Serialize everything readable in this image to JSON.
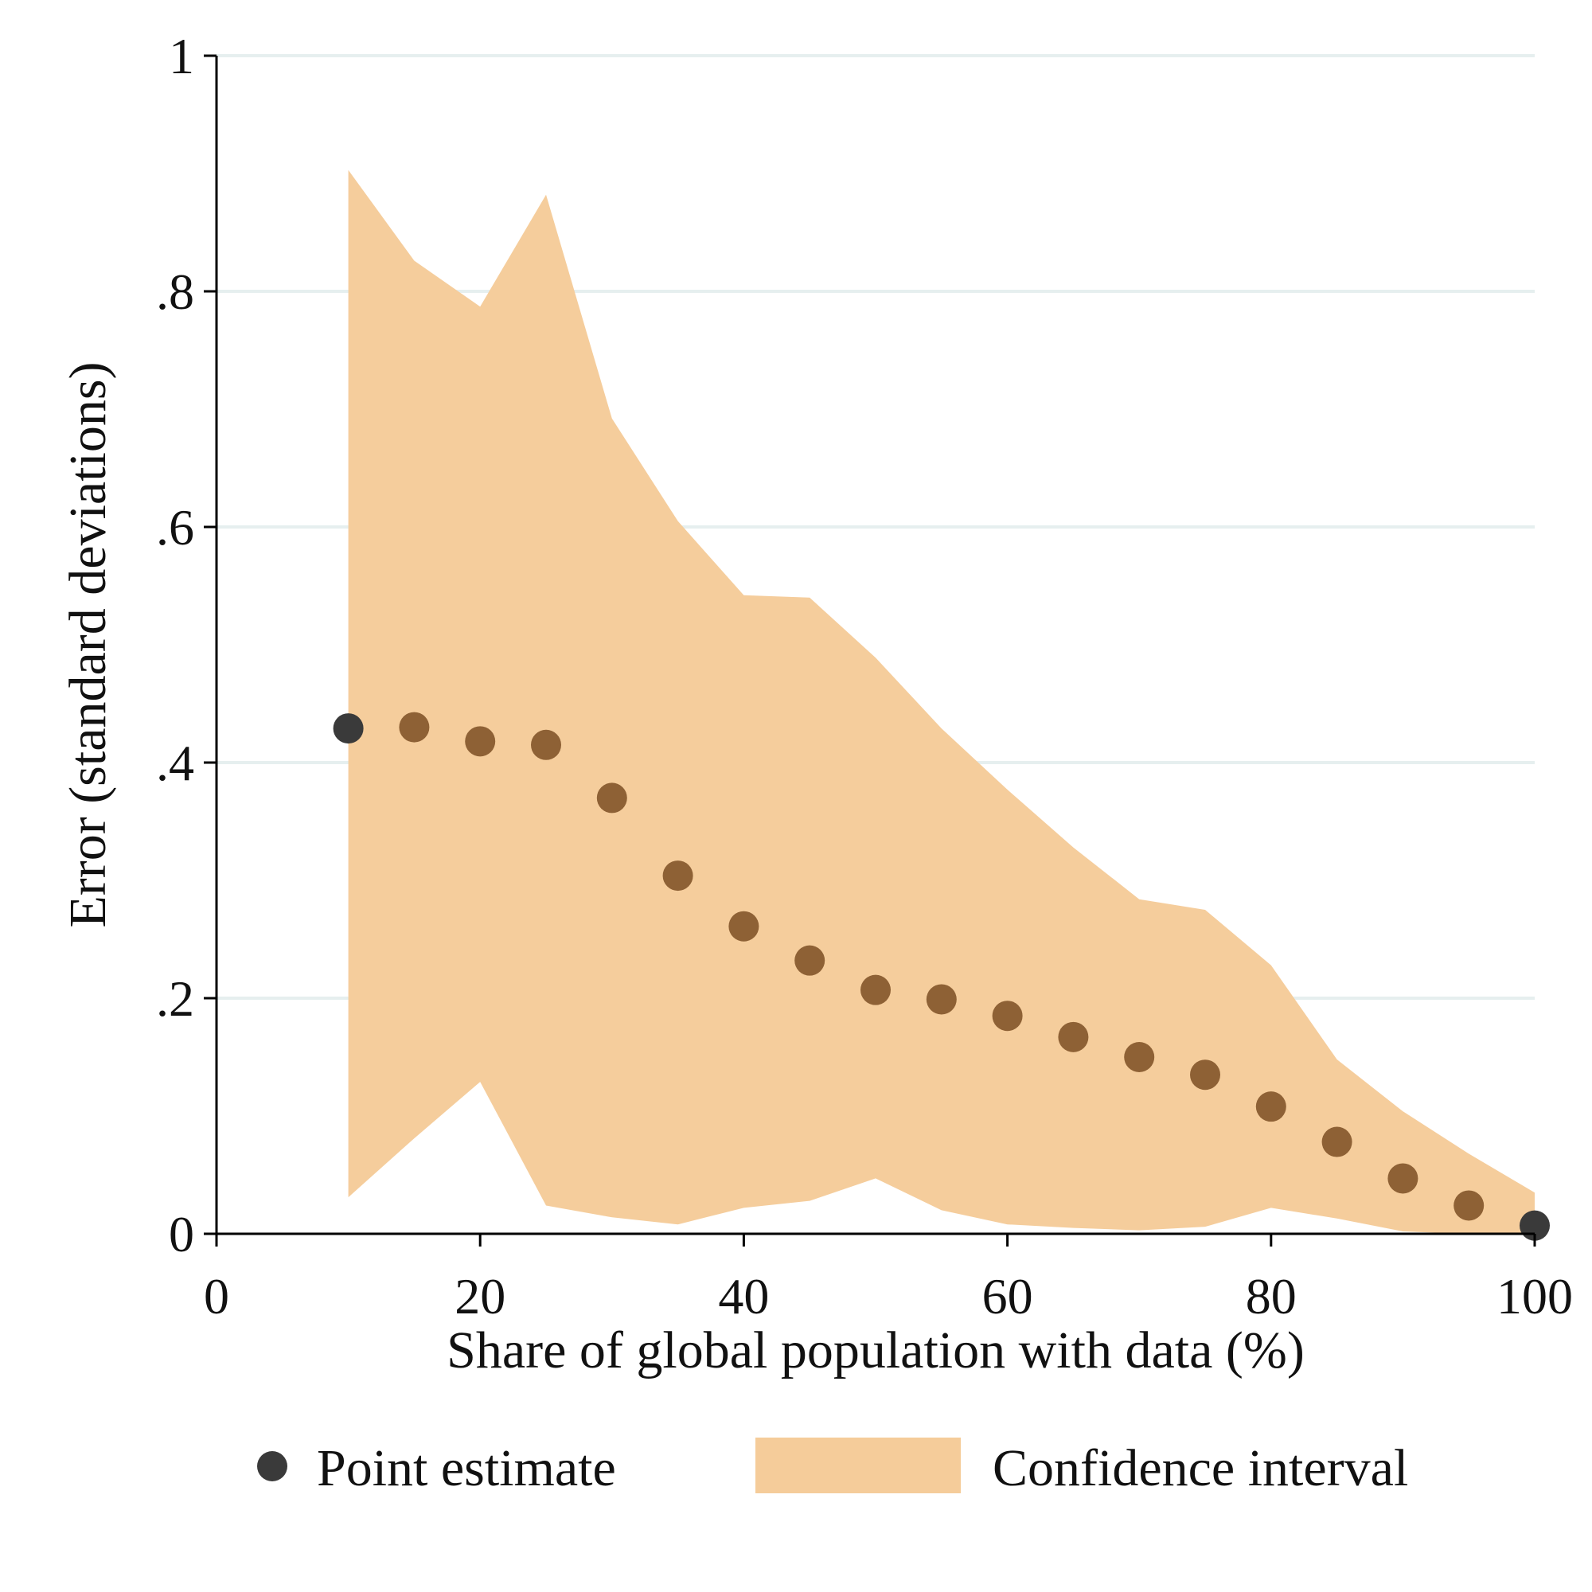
{
  "chart_data": {
    "type": "area",
    "title": "",
    "xlabel": "Share of global population with data (%)",
    "ylabel": "Error (standard deviations)",
    "xlim": [
      0,
      100
    ],
    "ylim": [
      0,
      1
    ],
    "xticks": [
      0,
      20,
      40,
      60,
      80,
      100
    ],
    "xtick_labels": [
      "0",
      "20",
      "40",
      "60",
      "80",
      "100"
    ],
    "yticks": [
      0,
      0.2,
      0.4,
      0.6,
      0.8,
      1
    ],
    "ytick_labels": [
      "0",
      ".2",
      ".4",
      ".6",
      ".8",
      "1"
    ],
    "grid": "horizontal",
    "legend_position": "bottom",
    "x": [
      10,
      15,
      20,
      25,
      30,
      35,
      40,
      45,
      50,
      55,
      60,
      65,
      70,
      75,
      80,
      85,
      90,
      95,
      100
    ],
    "series": [
      {
        "name": "Point estimate",
        "kind": "scatter",
        "color": "#3a3a3a",
        "values": [
          0.429,
          0.43,
          0.418,
          0.415,
          0.37,
          0.304,
          0.261,
          0.232,
          0.207,
          0.199,
          0.185,
          0.167,
          0.15,
          0.135,
          0.108,
          0.078,
          0.047,
          0.024,
          0.007
        ]
      },
      {
        "name": "Confidence interval",
        "kind": "band",
        "color": "#f5cc9a",
        "lower": [
          0.031,
          0.081,
          0.129,
          0.024,
          0.014,
          0.008,
          0.022,
          0.028,
          0.047,
          0.02,
          0.008,
          0.005,
          0.003,
          0.006,
          0.022,
          0.013,
          0.002,
          0.0,
          0.0
        ],
        "upper": [
          0.903,
          0.826,
          0.787,
          0.882,
          0.692,
          0.605,
          0.542,
          0.54,
          0.489,
          0.429,
          0.377,
          0.328,
          0.284,
          0.275,
          0.228,
          0.148,
          0.104,
          0.068,
          0.035
        ]
      }
    ]
  }
}
